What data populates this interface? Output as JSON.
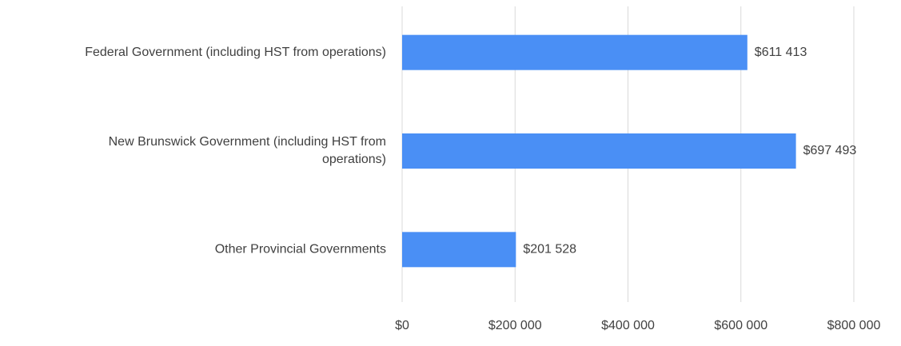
{
  "chart_data": {
    "type": "bar",
    "orientation": "horizontal",
    "categories": [
      "Federal Government (including HST from operations)",
      "New Brunswick Government (including HST from operations)",
      "Other Provincial Governments"
    ],
    "values": [
      611413,
      697493,
      201528
    ],
    "value_labels": [
      "$611 413",
      "$697 493",
      "$201 528"
    ],
    "color": "#4a8ff5",
    "xlim": [
      0,
      800000
    ],
    "xticks": [
      {
        "value": 0,
        "label": "$0"
      },
      {
        "value": 200000,
        "label": "$200 000"
      },
      {
        "value": 400000,
        "label": "$400 000"
      },
      {
        "value": 600000,
        "label": "$600 000"
      },
      {
        "value": 800000,
        "label": "$800 000"
      }
    ],
    "grid": true
  }
}
